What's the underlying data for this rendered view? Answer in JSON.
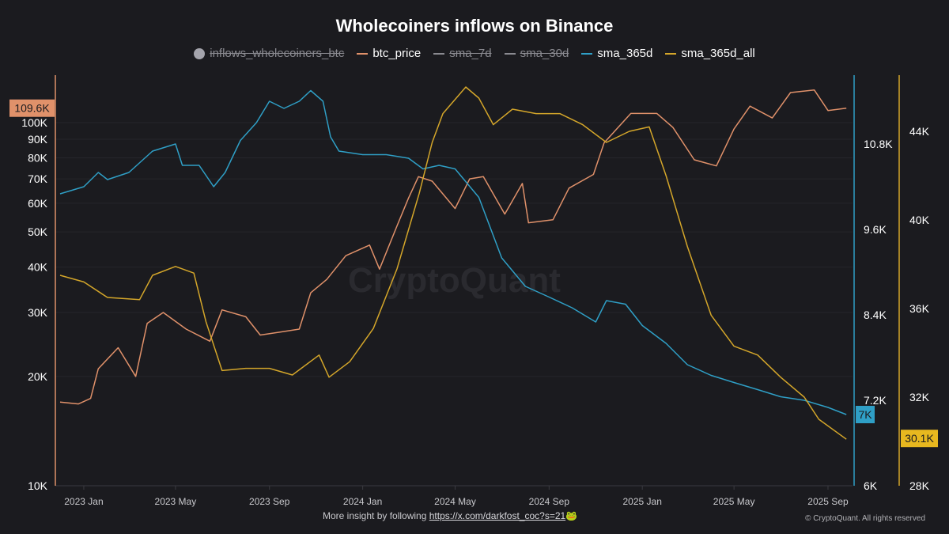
{
  "chart_data": {
    "type": "line",
    "title": "Wholecoiners inflows on Binance",
    "legend": [
      {
        "name": "inflows_wholecoiners_btc",
        "color": "#a4a4ac",
        "hidden": true,
        "marker": "dot"
      },
      {
        "name": "btc_price",
        "color": "#e0916a",
        "hidden": false
      },
      {
        "name": "sma_7d",
        "color": "#8a8a90",
        "hidden": true
      },
      {
        "name": "sma_30d",
        "color": "#8a8a90",
        "hidden": true
      },
      {
        "name": "sma_365d",
        "color": "#2f9fc6",
        "hidden": false
      },
      {
        "name": "sma_365d_all",
        "color": "#d4a62a",
        "hidden": false
      }
    ],
    "legend_position": "top",
    "x_ticks": [
      "2023 Jan",
      "2023 May",
      "2023 Sep",
      "2024 Jan",
      "2024 May",
      "2024 Sep",
      "2025 Jan",
      "2025 May",
      "2025 Sep"
    ],
    "x_tick_dates": [
      "2023-01-01",
      "2023-05-01",
      "2023-09-01",
      "2024-01-01",
      "2024-05-01",
      "2024-09-01",
      "2025-01-01",
      "2025-05-01",
      "2025-09-01"
    ],
    "xlim": [
      "2022-12-01",
      "2025-09-30"
    ],
    "axes": {
      "left": {
        "scale": "log",
        "range": [
          10000,
          140000
        ],
        "ticks": [
          "10K",
          "20K",
          "30K",
          "40K",
          "50K",
          "60K",
          "70K",
          "80K",
          "90K",
          "100K"
        ],
        "tick_values": [
          10000,
          20000,
          30000,
          40000,
          50000,
          60000,
          70000,
          80000,
          90000,
          100000
        ],
        "color": "#e0916a",
        "last_label": "109.6K"
      },
      "middle": {
        "scale": "linear",
        "range": [
          6000,
          11770
        ],
        "ticks": [
          "6K",
          "7.2K",
          "8.4K",
          "9.6K",
          "10.8K"
        ],
        "tick_values": [
          6000,
          7200,
          8400,
          9600,
          10800
        ],
        "color": "#2f9fc6",
        "last_label": "7K"
      },
      "right": {
        "scale": "linear",
        "range": [
          28000,
          46540
        ],
        "ticks": [
          "28K",
          "32K",
          "36K",
          "40K",
          "44K"
        ],
        "tick_values": [
          28000,
          32000,
          36000,
          40000,
          44000
        ],
        "color": "#d4a62a",
        "last_label": "30.1K"
      }
    },
    "grid": true,
    "series": [
      {
        "name": "btc_price",
        "axis": "left",
        "color": "#e0916a",
        "points": [
          [
            "2022-12-01",
            17000
          ],
          [
            "2022-12-25",
            16800
          ],
          [
            "2023-01-10",
            17400
          ],
          [
            "2023-01-20",
            21000
          ],
          [
            "2023-02-15",
            24000
          ],
          [
            "2023-03-10",
            20000
          ],
          [
            "2023-03-25",
            28000
          ],
          [
            "2023-04-15",
            30000
          ],
          [
            "2023-05-15",
            27000
          ],
          [
            "2023-06-15",
            25000
          ],
          [
            "2023-07-01",
            30500
          ],
          [
            "2023-08-01",
            29200
          ],
          [
            "2023-08-20",
            26000
          ],
          [
            "2023-09-15",
            26500
          ],
          [
            "2023-10-10",
            27000
          ],
          [
            "2023-10-25",
            34000
          ],
          [
            "2023-11-15",
            37000
          ],
          [
            "2023-12-10",
            43000
          ],
          [
            "2024-01-10",
            46000
          ],
          [
            "2024-01-23",
            39500
          ],
          [
            "2024-02-15",
            52000
          ],
          [
            "2024-03-01",
            62000
          ],
          [
            "2024-03-14",
            71000
          ],
          [
            "2024-04-01",
            69000
          ],
          [
            "2024-05-01",
            58000
          ],
          [
            "2024-05-20",
            70000
          ],
          [
            "2024-06-07",
            71000
          ],
          [
            "2024-07-05",
            56000
          ],
          [
            "2024-07-28",
            68000
          ],
          [
            "2024-08-05",
            53000
          ],
          [
            "2024-09-06",
            54000
          ],
          [
            "2024-09-27",
            66000
          ],
          [
            "2024-10-29",
            72000
          ],
          [
            "2024-11-12",
            88000
          ],
          [
            "2024-12-17",
            106000
          ],
          [
            "2025-01-20",
            106000
          ],
          [
            "2025-02-10",
            97000
          ],
          [
            "2025-03-10",
            79000
          ],
          [
            "2025-04-08",
            76000
          ],
          [
            "2025-05-01",
            96000
          ],
          [
            "2025-05-22",
            111000
          ],
          [
            "2025-06-20",
            103000
          ],
          [
            "2025-07-14",
            121000
          ],
          [
            "2025-08-14",
            123000
          ],
          [
            "2025-09-01",
            108000
          ],
          [
            "2025-09-25",
            109600
          ]
        ]
      },
      {
        "name": "sma_365d",
        "axis": "middle",
        "color": "#2f9fc6",
        "points": [
          [
            "2022-12-01",
            10100
          ],
          [
            "2023-01-01",
            10200
          ],
          [
            "2023-01-20",
            10400
          ],
          [
            "2023-02-01",
            10300
          ],
          [
            "2023-03-01",
            10400
          ],
          [
            "2023-04-01",
            10700
          ],
          [
            "2023-05-01",
            10800
          ],
          [
            "2023-05-10",
            10500
          ],
          [
            "2023-06-01",
            10500
          ],
          [
            "2023-06-20",
            10200
          ],
          [
            "2023-07-05",
            10400
          ],
          [
            "2023-07-25",
            10850
          ],
          [
            "2023-08-15",
            11100
          ],
          [
            "2023-09-01",
            11400
          ],
          [
            "2023-09-20",
            11300
          ],
          [
            "2023-10-10",
            11400
          ],
          [
            "2023-10-25",
            11550
          ],
          [
            "2023-11-10",
            11400
          ],
          [
            "2023-11-20",
            10900
          ],
          [
            "2023-12-01",
            10700
          ],
          [
            "2024-01-01",
            10650
          ],
          [
            "2024-02-01",
            10650
          ],
          [
            "2024-03-01",
            10600
          ],
          [
            "2024-03-20",
            10450
          ],
          [
            "2024-04-10",
            10500
          ],
          [
            "2024-05-01",
            10450
          ],
          [
            "2024-06-01",
            10050
          ],
          [
            "2024-07-01",
            9200
          ],
          [
            "2024-08-01",
            8800
          ],
          [
            "2024-09-01",
            8650
          ],
          [
            "2024-10-01",
            8500
          ],
          [
            "2024-11-01",
            8300
          ],
          [
            "2024-11-15",
            8600
          ],
          [
            "2024-12-10",
            8550
          ],
          [
            "2025-01-01",
            8250
          ],
          [
            "2025-02-01",
            8000
          ],
          [
            "2025-03-01",
            7700
          ],
          [
            "2025-04-01",
            7550
          ],
          [
            "2025-05-01",
            7450
          ],
          [
            "2025-06-01",
            7350
          ],
          [
            "2025-07-01",
            7250
          ],
          [
            "2025-08-01",
            7200
          ],
          [
            "2025-09-01",
            7100
          ],
          [
            "2025-09-25",
            7000
          ]
        ]
      },
      {
        "name": "sma_365d_all",
        "axis": "right",
        "color": "#d4a62a",
        "points": [
          [
            "2022-12-01",
            37500
          ],
          [
            "2023-01-01",
            37200
          ],
          [
            "2023-02-01",
            36500
          ],
          [
            "2023-03-15",
            36400
          ],
          [
            "2023-04-01",
            37500
          ],
          [
            "2023-05-01",
            37900
          ],
          [
            "2023-05-25",
            37600
          ],
          [
            "2023-06-10",
            35400
          ],
          [
            "2023-07-01",
            33200
          ],
          [
            "2023-08-01",
            33300
          ],
          [
            "2023-09-01",
            33300
          ],
          [
            "2023-10-01",
            33000
          ],
          [
            "2023-11-05",
            33900
          ],
          [
            "2023-11-18",
            32900
          ],
          [
            "2023-12-15",
            33600
          ],
          [
            "2024-01-15",
            35100
          ],
          [
            "2024-02-15",
            37800
          ],
          [
            "2024-03-15",
            41200
          ],
          [
            "2024-04-01",
            43500
          ],
          [
            "2024-04-15",
            44800
          ],
          [
            "2024-05-15",
            46000
          ],
          [
            "2024-06-01",
            45500
          ],
          [
            "2024-06-20",
            44300
          ],
          [
            "2024-07-15",
            45000
          ],
          [
            "2024-08-15",
            44800
          ],
          [
            "2024-09-15",
            44800
          ],
          [
            "2024-10-15",
            44300
          ],
          [
            "2024-11-15",
            43500
          ],
          [
            "2024-12-15",
            44000
          ],
          [
            "2025-01-10",
            44200
          ],
          [
            "2025-02-01",
            42000
          ],
          [
            "2025-03-01",
            38800
          ],
          [
            "2025-04-01",
            35700
          ],
          [
            "2025-05-01",
            34300
          ],
          [
            "2025-06-01",
            33900
          ],
          [
            "2025-07-01",
            32900
          ],
          [
            "2025-08-01",
            32000
          ],
          [
            "2025-08-20",
            31000
          ],
          [
            "2025-09-25",
            30100
          ]
        ]
      }
    ]
  },
  "footer": {
    "text": "More insight by following",
    "link": "https://x.com/darkfost_coc?s=21",
    "emoji": "🐸",
    "copyright": "© CryptoQuant. All rights reserved"
  },
  "watermark": "CryptoQuant"
}
